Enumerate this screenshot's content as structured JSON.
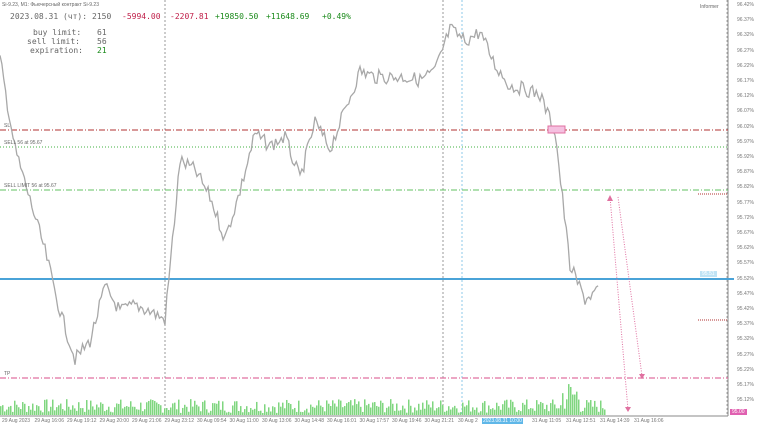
{
  "window": {
    "title": "Si-9.23, M1: Фьючерсный контракт Si-9.23",
    "indicator": "Informer"
  },
  "stats": {
    "date_label": "2023.08.31 (чт):",
    "count": "2150",
    "v1": "-5994.00",
    "v2": "-2207.81",
    "v3": "+19850.50",
    "v4": "+11648.69",
    "pct": "+0.49%",
    "buy_limit_label": "buy limit:",
    "buy_limit": "61",
    "sell_limit_label": "sell limit:",
    "sell_limit": "56",
    "expiration_label": "expiration:",
    "expiration": "21"
  },
  "levels": {
    "sl_label": "SL",
    "sell_label": "SELL 56 at 95.67",
    "sell_limit_label": "SELL LIMIT 56 at 95.67",
    "tp_label": "TP",
    "current_price": "95.51",
    "marker_price": "95.00"
  },
  "colors": {
    "up": "#1a8a1a",
    "down": "#c0204a",
    "price_line": "#4aa3d8",
    "volume": "#7fd67f",
    "sl": "#b03030",
    "tp": "#e070a0",
    "candles": "#a8a8a8"
  },
  "chart_data": {
    "type": "line",
    "close": [
      96.24,
      95.94,
      95.77,
      95.6,
      95.4,
      95.24,
      95.3,
      95.48,
      95.4,
      95.42,
      95.4,
      95.37,
      95.9,
      95.87,
      95.78,
      95.64,
      95.8,
      95.99,
      95.95,
      95.98,
      95.84,
      96.03,
      95.94,
      96.07,
      96.2,
      96.18,
      96.18,
      96.18,
      96.17,
      96.2,
      96.34,
      96.3,
      96.33,
      96.22,
      96.15,
      96.14,
      96.12,
      96.0,
      95.55,
      95.44,
      95.47
    ],
    "ylim": [
      95.1,
      96.42
    ],
    "price_ticks": [
      "96.42%",
      "96.37%",
      "96.32%",
      "96.27%",
      "96.22%",
      "96.17%",
      "96.12%",
      "96.07%",
      "96.02%",
      "95.97%",
      "95.92%",
      "95.87%",
      "95.82%",
      "95.77%",
      "95.72%",
      "95.67%",
      "95.62%",
      "95.57%",
      "95.52%",
      "95.47%",
      "95.42%",
      "95.37%",
      "95.32%",
      "95.27%",
      "95.22%",
      "95.17%",
      "95.12%"
    ],
    "time_ticks": [
      "29 Aug 2023",
      "29 Aug 16:06",
      "29 Aug 19:12",
      "29 Aug 20:00",
      "29 Aug 21:06",
      "29 Aug 23:12",
      "30 Aug 09:54",
      "30 Aug 11:00",
      "30 Aug 13:06",
      "30 Aug 14:48",
      "30 Aug 16:01",
      "30 Aug 17:57",
      "30 Aug 19:46",
      "30 Aug 21:21",
      "30 Aug 2",
      "2023.08.31 10:00",
      "31 Aug 11:05",
      "31 Aug 12:51",
      "31 Aug 14:39",
      "31 Aug 16:06"
    ],
    "grid": false
  }
}
